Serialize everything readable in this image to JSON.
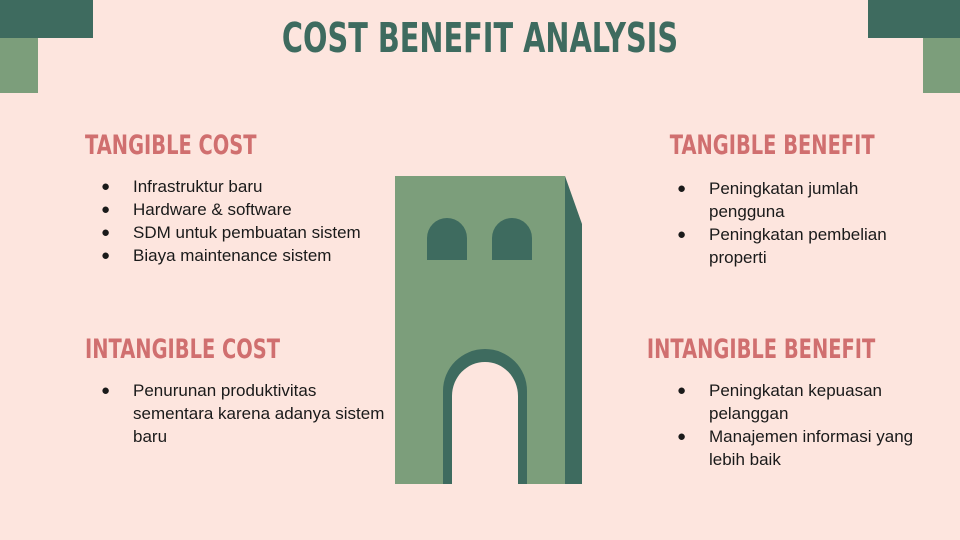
{
  "title": "COST BENEFIT ANALYSIS",
  "colors": {
    "background": "#fde5de",
    "dark_green": "#3e6b5f",
    "light_green": "#7c9e7b",
    "heading": "#d06f6f"
  },
  "sections": {
    "tangible_cost": {
      "heading": "TANGIBLE COST",
      "items": [
        "Infrastruktur baru",
        "Hardware & software",
        "SDM untuk pembuatan sistem",
        "Biaya maintenance sistem"
      ]
    },
    "intangible_cost": {
      "heading": "INTANGIBLE COST",
      "items": [
        "Penurunan produktivitas sementara karena adanya sistem baru"
      ]
    },
    "tangible_benefit": {
      "heading": "TANGIBLE BENEFIT",
      "items": [
        "Peningkatan jumlah pengguna",
        "Peningkatan pembelian properti"
      ]
    },
    "intangible_benefit": {
      "heading": "INTANGIBLE BENEFIT",
      "items": [
        "Peningkatan kepuasan pelanggan",
        "Manajemen informasi yang lebih baik"
      ]
    }
  }
}
